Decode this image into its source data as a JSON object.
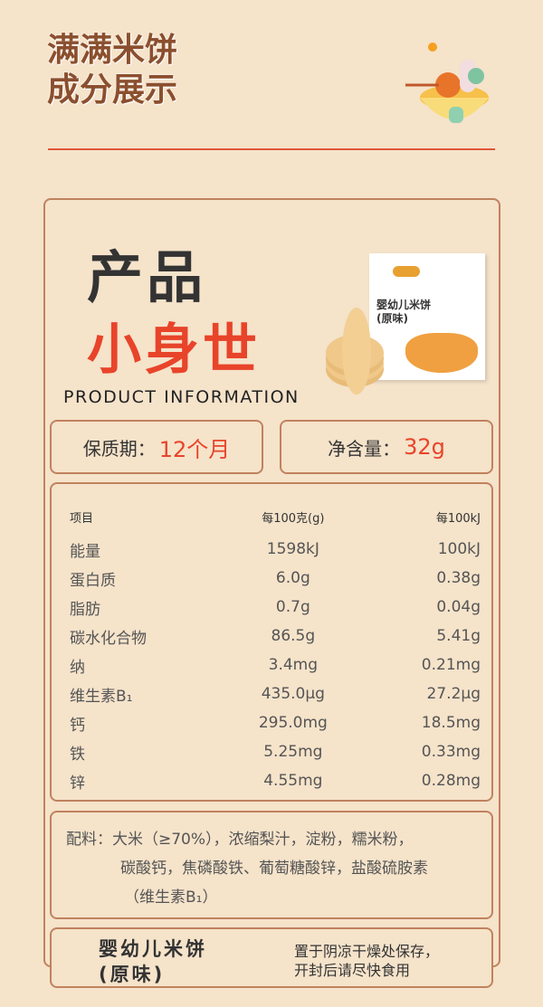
{
  "header": {
    "title_line1": "满满米饼",
    "title_line2": "成分展示"
  },
  "product": {
    "label": "产品",
    "name": "小身世",
    "english": "PRODUCT INFORMATION",
    "package_title": "婴幼儿米饼\n(原味)"
  },
  "specs": {
    "shelf_life_label": "保质期：",
    "shelf_life": "12个月",
    "net_label": "净含量：",
    "net": "32g"
  },
  "nutrition": {
    "headers": [
      "项目",
      "每100克(g)",
      "每100kJ"
    ],
    "rows": [
      [
        "能量",
        "1598kJ",
        "100kJ"
      ],
      [
        "蛋白质",
        "6.0g",
        "0.38g"
      ],
      [
        "脂肪",
        "0.7g",
        "0.04g"
      ],
      [
        "碳水化合物",
        "86.5g",
        "5.41g"
      ],
      [
        "纳",
        "3.4mg",
        "0.21mg"
      ],
      [
        "维生素B₁",
        "435.0μg",
        "27.2μg"
      ],
      [
        "钙",
        "295.0mg",
        "18.5mg"
      ],
      [
        "铁",
        "5.25mg",
        "0.33mg"
      ],
      [
        "锌",
        "4.55mg",
        "0.28mg"
      ]
    ]
  },
  "ingredients": {
    "line1": "配料：大米（≥70%），浓缩梨汁，淀粉，糯米粉，",
    "line2": "碳酸钙，焦磷酸铁、葡萄糖酸锌，盐酸硫胺素",
    "line3": "（维生素B₁）"
  },
  "footer": {
    "name_line1": "婴幼儿米饼",
    "name_line2": "(原味)",
    "storage_line1": "置于阴凉干燥处保存，",
    "storage_line2": "开封后请尽快食用"
  },
  "colors": {
    "background": "#f5e3ca",
    "border": "#c0825e",
    "accent": "#e8442a",
    "title": "#8b4f2e"
  }
}
